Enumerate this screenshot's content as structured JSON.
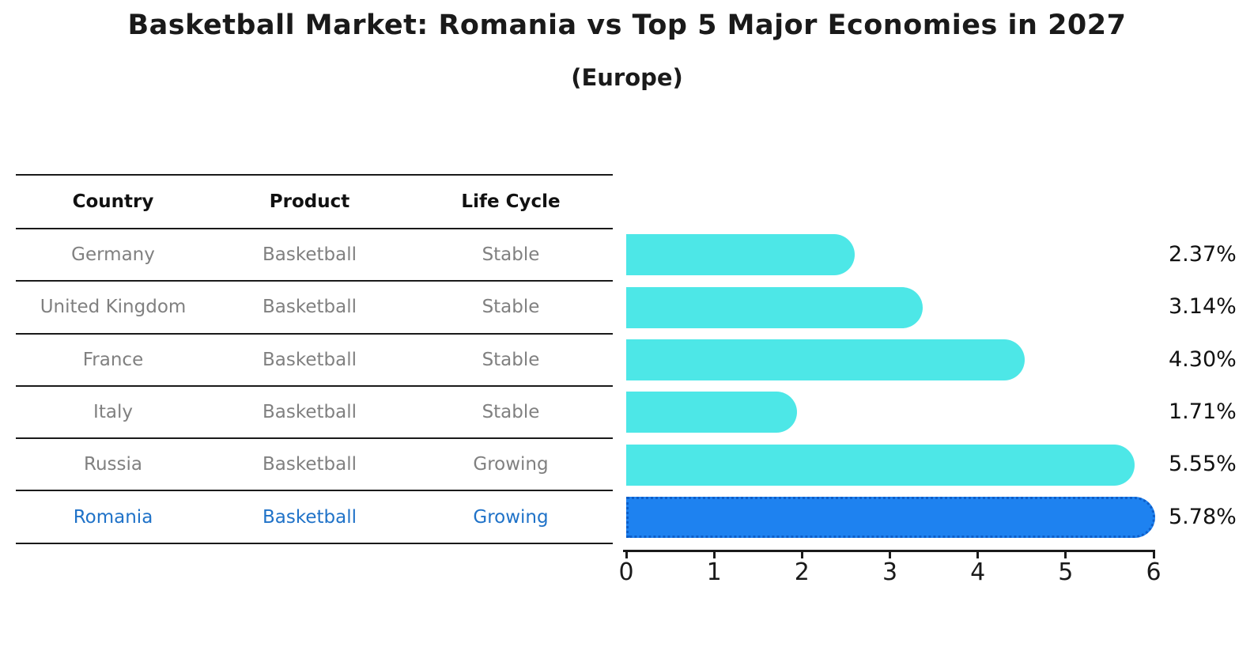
{
  "header": {
    "title": "Basketball Market: Romania vs Top 5 Major Economies in 2027",
    "subtitle": "(Europe)"
  },
  "table": {
    "columns": [
      "Country",
      "Product",
      "Life Cycle"
    ],
    "rows": [
      {
        "country": "Germany",
        "product": "Basketball",
        "life_cycle": "Stable",
        "highlight": false
      },
      {
        "country": "United Kingdom",
        "product": "Basketball",
        "life_cycle": "Stable",
        "highlight": false
      },
      {
        "country": "France",
        "product": "Basketball",
        "life_cycle": "Stable",
        "highlight": false
      },
      {
        "country": "Italy",
        "product": "Basketball",
        "life_cycle": "Stable",
        "highlight": false
      },
      {
        "country": "Russia",
        "product": "Basketball",
        "life_cycle": "Growing",
        "highlight": false
      },
      {
        "country": "Romania",
        "product": "Basketball",
        "life_cycle": "Growing",
        "highlight": true
      }
    ]
  },
  "chart_data": {
    "type": "bar",
    "orientation": "horizontal",
    "title": "Basketball Market: Romania vs Top 5 Major Economies in 2027",
    "subtitle": "(Europe)",
    "categories": [
      "Germany",
      "United Kingdom",
      "France",
      "Italy",
      "Russia",
      "Romania"
    ],
    "values": [
      2.37,
      3.14,
      4.3,
      1.71,
      5.55,
      5.78
    ],
    "value_labels": [
      "2.37%",
      "3.14%",
      "4.30%",
      "1.71%",
      "5.55%",
      "5.78%"
    ],
    "x_ticks": [
      0,
      1,
      2,
      3,
      4,
      5,
      6
    ],
    "xlim": [
      0,
      6
    ],
    "grid": false,
    "legend": "none",
    "bar_color": "#4DE7E7",
    "highlight_index": 5,
    "highlight_color": "#1E82F0",
    "highlight_border_color": "#0D5EC9",
    "highlight_border_style": "dotted"
  },
  "colors": {
    "text": "#1a1a1a",
    "muted_text": "#808080",
    "highlight_text": "#1F72C8",
    "line": "#1a1a1a",
    "background": "#ffffff"
  }
}
